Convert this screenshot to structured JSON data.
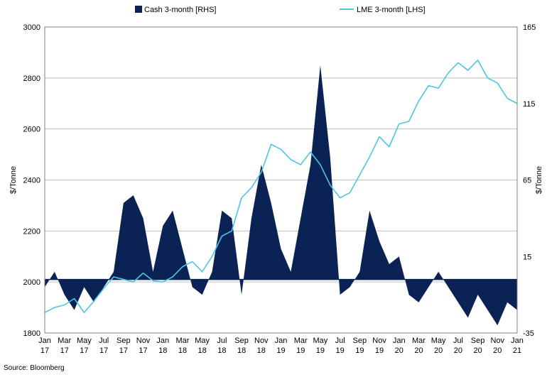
{
  "chart_data": {
    "type": "line+area",
    "legend": {
      "placement": "top",
      "entries": [
        {
          "label": "Cash 3-month [RHS]",
          "color": "#0b2354",
          "kind": "area"
        },
        {
          "label": "LME 3-month [LHS]",
          "color": "#4cc6e6",
          "kind": "line"
        }
      ]
    },
    "left_axis": {
      "label": "$/Tonne",
      "ylim": [
        1800,
        3000
      ],
      "ticks": [
        "1800",
        "2000",
        "2200",
        "2400",
        "2600",
        "2800",
        "3000"
      ]
    },
    "right_axis": {
      "label": "$/Tonne",
      "ylim": [
        -35,
        165
      ],
      "ticks": [
        "-35",
        "15",
        "65",
        "115",
        "165"
      ]
    },
    "x_ticks": [
      [
        "Jan",
        "17"
      ],
      [
        "Mar",
        "17"
      ],
      [
        "May",
        "17"
      ],
      [
        "Jul",
        "17"
      ],
      [
        "Sep",
        "17"
      ],
      [
        "Nov",
        "17"
      ],
      [
        "Jan",
        "18"
      ],
      [
        "Mar",
        "18"
      ],
      [
        "May",
        "18"
      ],
      [
        "Jul",
        "18"
      ],
      [
        "Sep",
        "18"
      ],
      [
        "Nov",
        "18"
      ],
      [
        "Jan",
        "19"
      ],
      [
        "Mar",
        "19"
      ],
      [
        "May",
        "19"
      ],
      [
        "Jul",
        "19"
      ],
      [
        "Sep",
        "19"
      ],
      [
        "Nov",
        "19"
      ],
      [
        "Jan",
        "20"
      ],
      [
        "Mar",
        "20"
      ],
      [
        "May",
        "20"
      ],
      [
        "Jul",
        "20"
      ],
      [
        "Sep",
        "20"
      ],
      [
        "Nov",
        "20"
      ],
      [
        "Jan",
        "21"
      ]
    ],
    "grid": "horizontal",
    "series": [
      {
        "name": "LME 3-month [LHS]",
        "axis": "left",
        "points": [
          [
            "2017-01",
            1880
          ],
          [
            "2017-02",
            1900
          ],
          [
            "2017-03",
            1910
          ],
          [
            "2017-04",
            1935
          ],
          [
            "2017-05",
            1880
          ],
          [
            "2017-06",
            1925
          ],
          [
            "2017-07",
            1975
          ],
          [
            "2017-08",
            2020
          ],
          [
            "2017-09",
            2010
          ],
          [
            "2017-10",
            2000
          ],
          [
            "2017-11",
            2035
          ],
          [
            "2017-12",
            2005
          ],
          [
            "2018-01",
            2000
          ],
          [
            "2018-02",
            2020
          ],
          [
            "2018-03",
            2060
          ],
          [
            "2018-04",
            2080
          ],
          [
            "2018-05",
            2040
          ],
          [
            "2018-06",
            2100
          ],
          [
            "2018-07",
            2180
          ],
          [
            "2018-08",
            2200
          ],
          [
            "2018-09",
            2330
          ],
          [
            "2018-10",
            2370
          ],
          [
            "2018-11",
            2430
          ],
          [
            "2018-12",
            2540
          ],
          [
            "2019-01",
            2520
          ],
          [
            "2019-02",
            2480
          ],
          [
            "2019-03",
            2460
          ],
          [
            "2019-04",
            2510
          ],
          [
            "2019-05",
            2460
          ],
          [
            "2019-06",
            2380
          ],
          [
            "2019-07",
            2330
          ],
          [
            "2019-08",
            2350
          ],
          [
            "2019-09",
            2420
          ],
          [
            "2019-10",
            2490
          ],
          [
            "2019-11",
            2570
          ],
          [
            "2019-12",
            2530
          ],
          [
            "2020-01",
            2620
          ],
          [
            "2020-02",
            2630
          ],
          [
            "2020-03",
            2710
          ],
          [
            "2020-04",
            2770
          ],
          [
            "2020-05",
            2760
          ],
          [
            "2020-06",
            2820
          ],
          [
            "2020-07",
            2860
          ],
          [
            "2020-08",
            2830
          ],
          [
            "2020-09",
            2870
          ],
          [
            "2020-10",
            2800
          ],
          [
            "2020-11",
            2780
          ],
          [
            "2020-12",
            2720
          ],
          [
            "2021-01",
            2700
          ]
        ]
      },
      {
        "name": "Cash 3-month [RHS]",
        "axis": "right",
        "points": [
          [
            "2017-01",
            -5
          ],
          [
            "2017-02",
            5
          ],
          [
            "2017-03",
            -10
          ],
          [
            "2017-04",
            -20
          ],
          [
            "2017-05",
            -5
          ],
          [
            "2017-06",
            -15
          ],
          [
            "2017-07",
            -5
          ],
          [
            "2017-08",
            5
          ],
          [
            "2017-09",
            50
          ],
          [
            "2017-10",
            55
          ],
          [
            "2017-11",
            40
          ],
          [
            "2017-12",
            5
          ],
          [
            "2018-01",
            35
          ],
          [
            "2018-02",
            45
          ],
          [
            "2018-03",
            20
          ],
          [
            "2018-04",
            -5
          ],
          [
            "2018-05",
            -10
          ],
          [
            "2018-06",
            5
          ],
          [
            "2018-07",
            45
          ],
          [
            "2018-08",
            40
          ],
          [
            "2018-09",
            -10
          ],
          [
            "2018-10",
            40
          ],
          [
            "2018-11",
            75
          ],
          [
            "2018-12",
            50
          ],
          [
            "2019-01",
            20
          ],
          [
            "2019-02",
            5
          ],
          [
            "2019-03",
            40
          ],
          [
            "2019-04",
            75
          ],
          [
            "2019-05",
            140
          ],
          [
            "2019-06",
            80
          ],
          [
            "2019-07",
            -10
          ],
          [
            "2019-08",
            -5
          ],
          [
            "2019-09",
            5
          ],
          [
            "2019-10",
            45
          ],
          [
            "2019-11",
            25
          ],
          [
            "2019-12",
            10
          ],
          [
            "2020-01",
            15
          ],
          [
            "2020-02",
            -10
          ],
          [
            "2020-03",
            -15
          ],
          [
            "2020-04",
            -5
          ],
          [
            "2020-05",
            5
          ],
          [
            "2020-06",
            -5
          ],
          [
            "2020-07",
            -15
          ],
          [
            "2020-08",
            -25
          ],
          [
            "2020-09",
            -10
          ],
          [
            "2020-10",
            -20
          ],
          [
            "2020-11",
            -30
          ],
          [
            "2020-12",
            -15
          ],
          [
            "2021-01",
            -20
          ]
        ]
      }
    ]
  },
  "source": "Source: Bloomberg"
}
